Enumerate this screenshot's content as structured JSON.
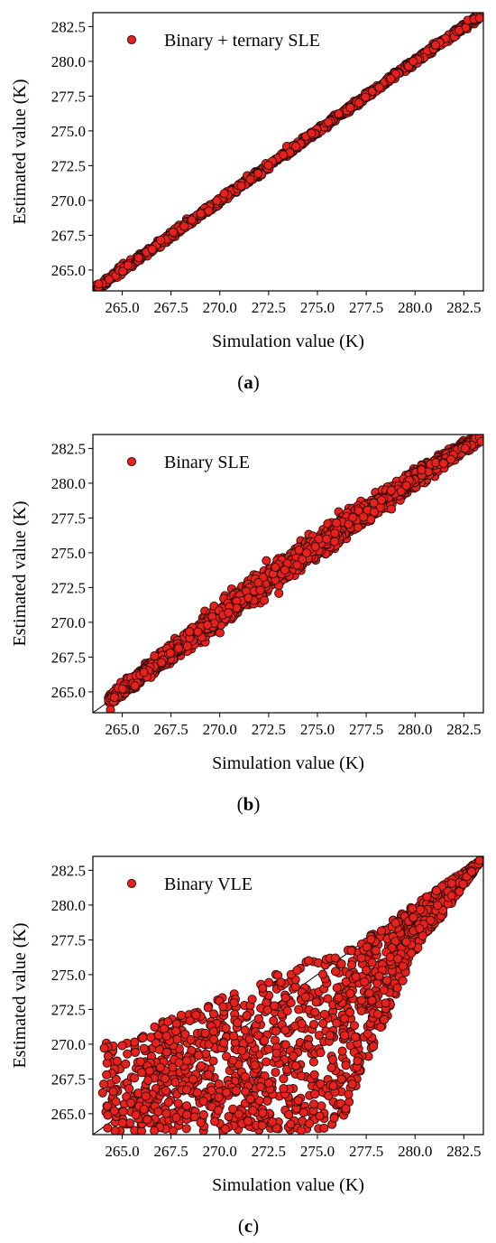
{
  "chart_data": [
    {
      "type": "scatter",
      "panel": "a",
      "caption": "a",
      "xlabel": "Simulation value (K)",
      "ylabel": "Estimated value (K)",
      "xlim": [
        263.5,
        283.5
      ],
      "ylim": [
        263.5,
        283.5
      ],
      "xticks": [
        "265.0",
        "267.5",
        "270.0",
        "272.5",
        "275.0",
        "277.5",
        "280.0",
        "282.5"
      ],
      "yticks": [
        "265.0",
        "267.5",
        "270.0",
        "272.5",
        "275.0",
        "277.5",
        "280.0",
        "282.5"
      ],
      "legend_position": "top-left",
      "reference_line": "y = x",
      "marker_color": "#e8211c",
      "series": [
        {
          "name": "Binary + ternary SLE",
          "description_stats": {
            "x_range": [
              263.7,
              283.4
            ],
            "spread_K": 0.12,
            "bias_K": 0.0,
            "n_points_approx": 1500
          },
          "sample_points": [
            [
              263.8,
              264.0
            ],
            [
              265.0,
              265.1
            ],
            [
              266.3,
              266.4
            ],
            [
              267.5,
              267.6
            ],
            [
              268.8,
              268.8
            ],
            [
              270.0,
              270.1
            ],
            [
              271.3,
              271.3
            ],
            [
              272.5,
              272.6
            ],
            [
              273.8,
              273.8
            ],
            [
              275.0,
              275.1
            ],
            [
              276.3,
              276.3
            ],
            [
              277.5,
              277.5
            ],
            [
              278.8,
              278.8
            ],
            [
              280.0,
              280.1
            ],
            [
              281.3,
              281.3
            ],
            [
              282.5,
              282.5
            ],
            [
              283.3,
              283.1
            ]
          ]
        }
      ]
    },
    {
      "type": "scatter",
      "panel": "b",
      "caption": "b",
      "xlabel": "Simulation value (K)",
      "ylabel": "Estimated value (K)",
      "xlim": [
        263.5,
        283.5
      ],
      "ylim": [
        263.5,
        283.5
      ],
      "xticks": [
        "265.0",
        "267.5",
        "270.0",
        "272.5",
        "275.0",
        "277.5",
        "280.0",
        "282.5"
      ],
      "yticks": [
        "265.0",
        "267.5",
        "270.0",
        "272.5",
        "275.0",
        "277.5",
        "280.0",
        "282.5"
      ],
      "legend_position": "top-left",
      "reference_line": "y = x",
      "marker_color": "#e8211c",
      "series": [
        {
          "name": "Binary SLE",
          "description_stats": {
            "x_range": [
              264.3,
              283.5
            ],
            "spread_K_low": 0.3,
            "spread_K_high": 0.9,
            "bias_K_mid": 0.6,
            "n_points_approx": 3000
          },
          "sample_points": [
            [
              264.4,
              263.7
            ],
            [
              265.0,
              264.9
            ],
            [
              266.3,
              266.3
            ],
            [
              267.5,
              267.6
            ],
            [
              268.8,
              269.1
            ],
            [
              270.0,
              270.6
            ],
            [
              271.3,
              271.8
            ],
            [
              272.5,
              273.1
            ],
            [
              273.8,
              274.4
            ],
            [
              275.0,
              275.6
            ],
            [
              276.3,
              276.8
            ],
            [
              277.5,
              278.0
            ],
            [
              278.8,
              279.1
            ],
            [
              280.0,
              280.2
            ],
            [
              281.3,
              281.3
            ],
            [
              282.5,
              282.6
            ],
            [
              283.4,
              283.0
            ]
          ]
        }
      ]
    },
    {
      "type": "scatter",
      "panel": "c",
      "caption": "c",
      "xlabel": "Simulation value (K)",
      "ylabel": "Estimated value (K)",
      "xlim": [
        263.5,
        283.5
      ],
      "ylim": [
        263.5,
        283.5
      ],
      "xticks": [
        "265.0",
        "267.5",
        "270.0",
        "272.5",
        "275.0",
        "277.5",
        "280.0",
        "282.5"
      ],
      "yticks": [
        "265.0",
        "267.5",
        "270.0",
        "272.5",
        "275.0",
        "277.5",
        "280.0",
        "282.5"
      ],
      "legend_position": "top-left",
      "reference_line": "y = x",
      "marker_color": "#e8211c",
      "series": [
        {
          "name": "Binary VLE",
          "description_stats": {
            "x_range": [
              264.0,
              283.4
            ],
            "y_range": [
              263.6,
              283.4
            ],
            "n_points_approx": 1400
          },
          "sample_points": [
            [
              264.0,
              266.5
            ],
            [
              265.0,
              270.0
            ],
            [
              266.3,
              264.5
            ],
            [
              267.5,
              271.0
            ],
            [
              268.8,
              264.0
            ],
            [
              270.0,
              273.0
            ],
            [
              271.3,
              266.0
            ],
            [
              272.5,
              274.5
            ],
            [
              273.8,
              264.0
            ],
            [
              275.0,
              276.0
            ],
            [
              276.3,
              266.5
            ],
            [
              277.5,
              277.5
            ],
            [
              278.8,
              273.0
            ],
            [
              280.0,
              280.5
            ],
            [
              281.3,
              279.5
            ],
            [
              282.5,
              282.3
            ],
            [
              283.3,
              283.2
            ]
          ]
        }
      ]
    }
  ]
}
